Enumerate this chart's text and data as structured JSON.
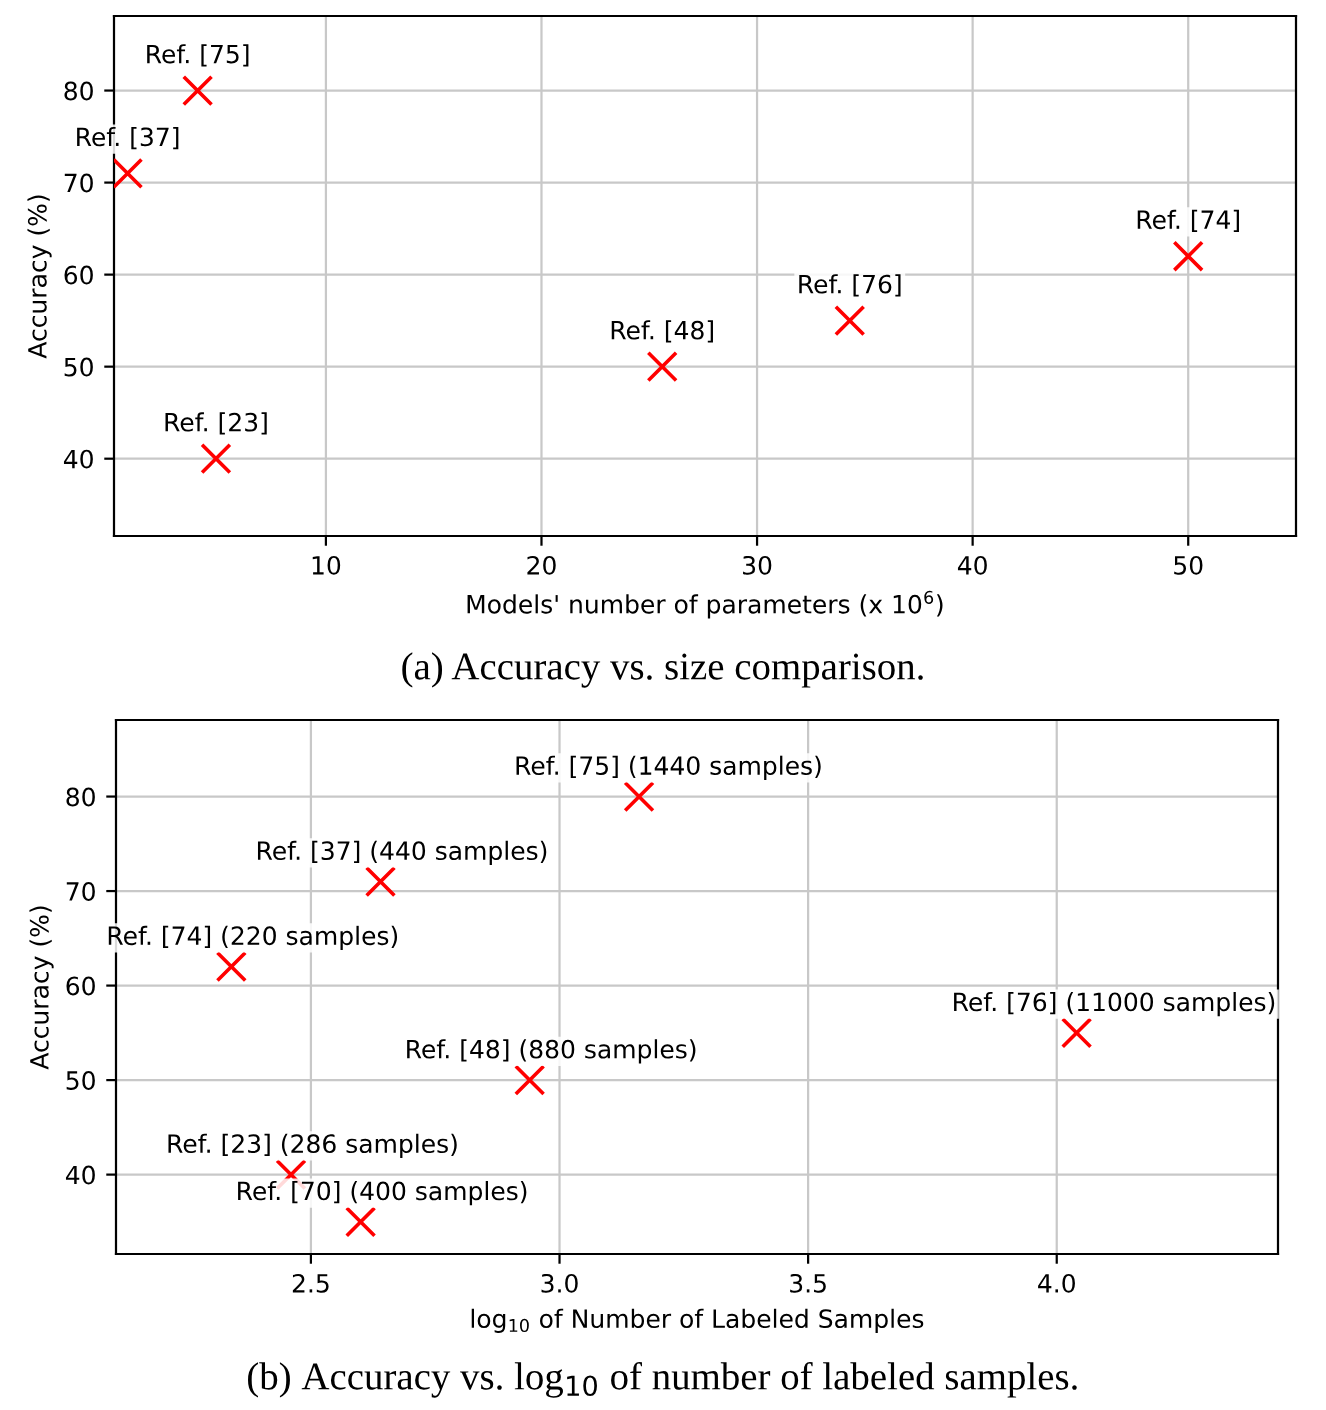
{
  "chart_data": [
    {
      "type": "scatter",
      "xlabel": "Models' number of parameters (x 10$^{6}$)",
      "ylabel": "Accuracy (%)",
      "x": [
        4.05,
        0.8,
        4.9,
        25.6,
        34.3,
        50
      ],
      "series": [
        {
          "color": "#ff0000",
          "values": [
            80,
            71,
            40,
            50,
            55,
            62
          ]
        }
      ],
      "xlim": [
        0.17,
        55
      ],
      "ylim": [
        31.6,
        88.1
      ],
      "xticks": [
        10,
        20,
        30,
        40,
        50
      ],
      "yticks": [
        40,
        50,
        60,
        70,
        80
      ],
      "grid": true,
      "marker": "cross",
      "annotations": [
        {
          "text": "Ref. [75]",
          "x": 4.05,
          "y": 80
        },
        {
          "text": "Ref. [37]",
          "x": 0.8,
          "y": 71
        },
        {
          "text": "Ref. [23]",
          "x": 4.9,
          "y": 40
        },
        {
          "text": "Ref. [48]",
          "x": 25.6,
          "y": 50
        },
        {
          "text": "Ref. [76]",
          "x": 34.3,
          "y": 55
        },
        {
          "text": "Ref. [74]",
          "x": 50,
          "y": 62
        },
        "(a) Accuracy vs. size comparison."
      ]
    },
    {
      "type": "scatter",
      "xlabel": "log$_{10}$ of Number of Labeled Samples",
      "ylabel": "Accuracy (%)",
      "x": [
        3.16,
        2.64,
        2.34,
        2.94,
        4.04,
        2.46,
        2.6
      ],
      "series": [
        {
          "color": "#ff0000",
          "values": [
            80,
            71,
            62,
            50,
            55,
            40,
            35
          ]
        }
      ],
      "xlim": [
        2.108,
        4.445
      ],
      "ylim": [
        31.6,
        88.1
      ],
      "xticks": [
        2.5,
        {
          "value": 3,
          "label": "3.0"
        },
        3.5,
        {
          "value": 4,
          "label": "4.0"
        }
      ],
      "yticks": [
        40,
        50,
        60,
        70,
        80
      ],
      "grid": true,
      "marker": "cross",
      "annotations": [
        {
          "text": "Ref. [75] (1440 samples)",
          "x": 3.16,
          "y": 80
        },
        {
          "text": "Ref. [37] (440 samples)",
          "x": 2.64,
          "y": 71
        },
        {
          "text": "Ref. [74] (220 samples)",
          "x": 2.34,
          "y": 62
        },
        {
          "text": "Ref. [48] (880 samples)",
          "x": 2.94,
          "y": 50
        },
        {
          "text": "Ref. [76] (11000 samples)",
          "x": 4.04,
          "y": 55
        },
        {
          "text": "Ref. [23] (286 samples)",
          "x": 2.46,
          "y": 40
        },
        {
          "text": "Ref. [70] (400 samples)",
          "x": 2.6,
          "y": 35
        },
        "(b) Accuracy vs. log$_{10}$ of number of labeled samples."
      ]
    }
  ]
}
